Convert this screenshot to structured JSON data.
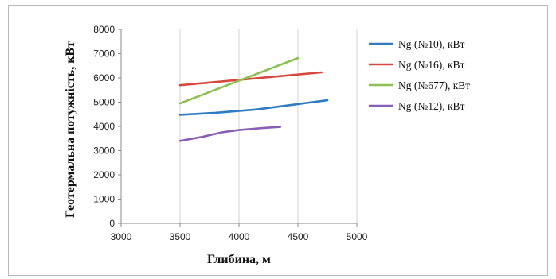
{
  "chart_data": {
    "type": "line",
    "xlabel": "Глибина, м",
    "ylabel": "Геотермальна потужність, кВт",
    "xlim": [
      3000,
      5000
    ],
    "ylim": [
      0,
      8000
    ],
    "xticks": [
      3000,
      3500,
      4000,
      4500,
      5000
    ],
    "yticks": [
      0,
      1000,
      2000,
      3000,
      4000,
      5000,
      6000,
      7000,
      8000
    ],
    "grid": "vertical",
    "legend": "right",
    "series": [
      {
        "name": "Ng (№10), кВт",
        "color": "#2f7bc4",
        "points": [
          [
            3500,
            4480
          ],
          [
            3800,
            4560
          ],
          [
            4150,
            4700
          ],
          [
            4500,
            4920
          ],
          [
            4750,
            5080
          ]
        ]
      },
      {
        "name": "Ng (№16), кВт",
        "color": "#d8483f",
        "points": [
          [
            3500,
            5700
          ],
          [
            4700,
            6230
          ]
        ]
      },
      {
        "name": "Ng (№677), кВт",
        "color": "#8cc152",
        "points": [
          [
            3500,
            4950
          ],
          [
            4500,
            6820
          ]
        ]
      },
      {
        "name": "Ng (№12), кВт",
        "color": "#8a5fb8",
        "points": [
          [
            3500,
            3400
          ],
          [
            3700,
            3580
          ],
          [
            3850,
            3750
          ],
          [
            4000,
            3850
          ],
          [
            4200,
            3930
          ],
          [
            4350,
            3980
          ]
        ]
      }
    ]
  }
}
